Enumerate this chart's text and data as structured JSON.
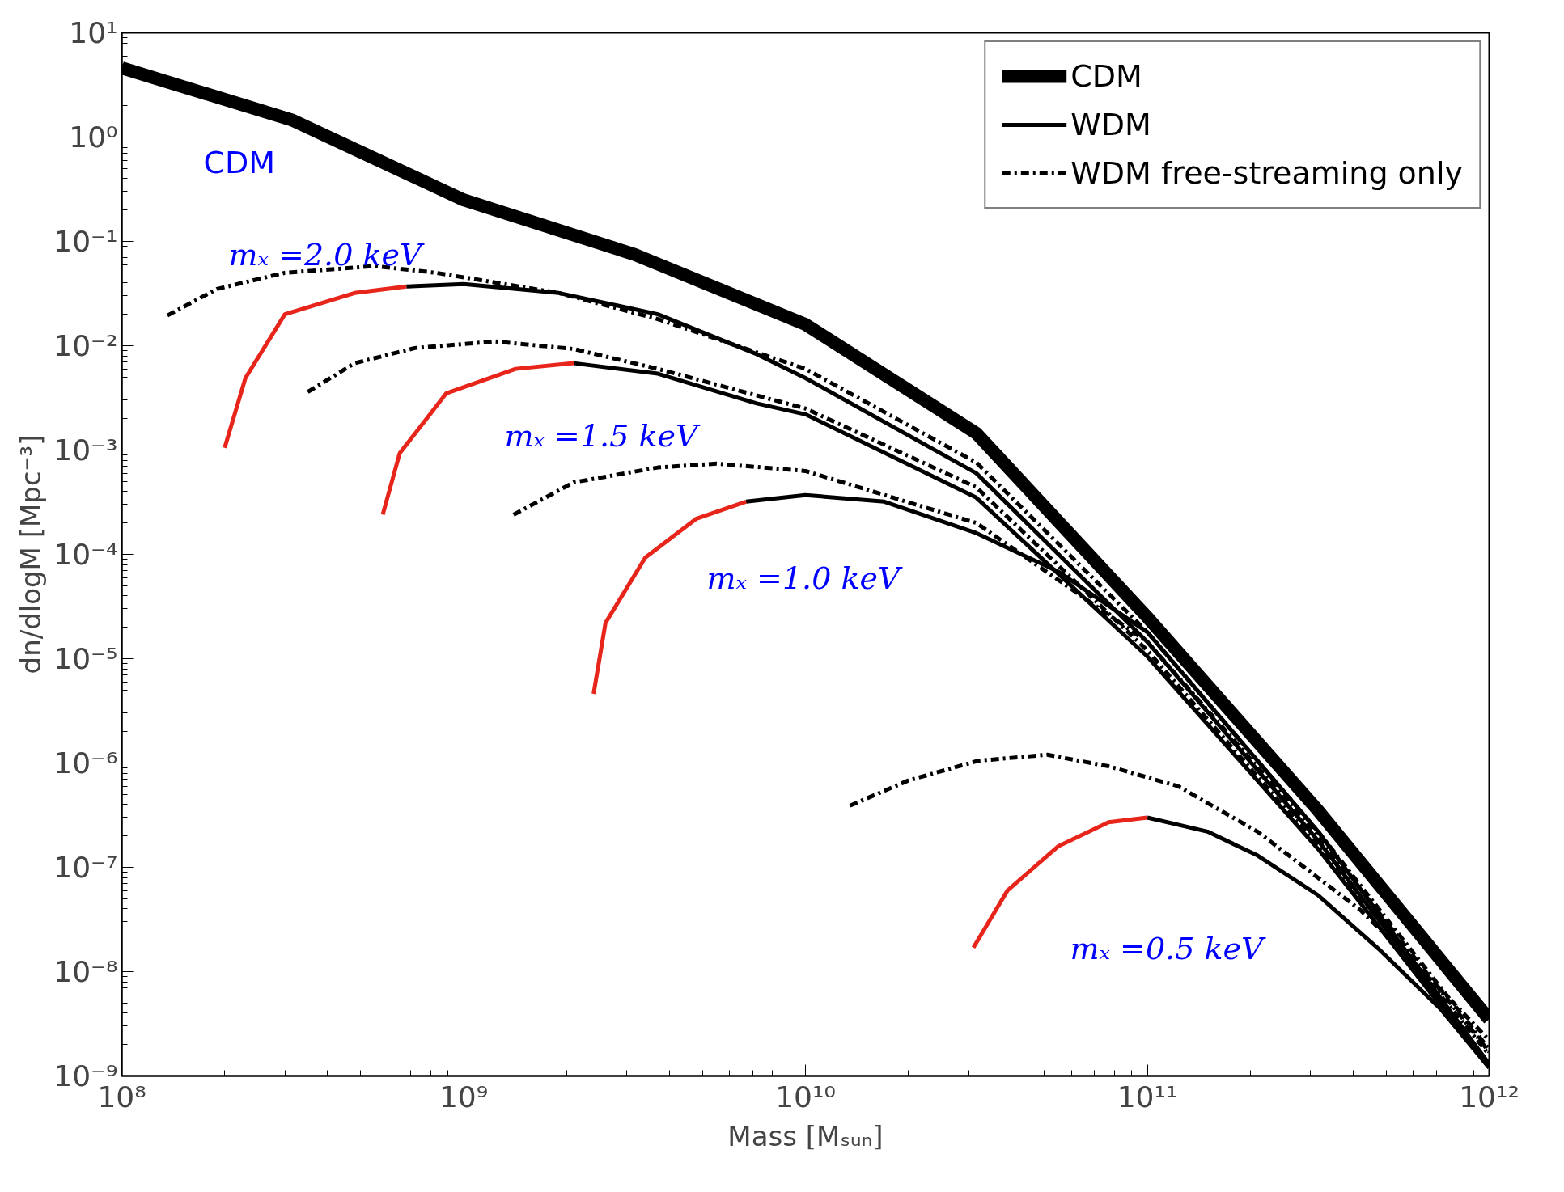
{
  "chart_data": {
    "type": "line",
    "xlabel": "Mass [Mₛᵤₙ]",
    "ylabel": "dn/dlogM [Mpc⁻³]",
    "log": "xy",
    "grid": false,
    "legend": "top right",
    "xlim": [
      100000000.0,
      1000000000000.0
    ],
    "ylim": [
      1e-09,
      10
    ],
    "xticks": [
      {
        "value": 100000000.0,
        "label": "10⁸"
      },
      {
        "value": 1000000000.0,
        "label": "10⁹"
      },
      {
        "value": 10000000000.0,
        "label": "10¹⁰"
      },
      {
        "value": 100000000000.0,
        "label": "10¹¹"
      },
      {
        "value": 1000000000000.0,
        "label": "10¹²"
      }
    ],
    "yticks": [
      {
        "value": 1e-09,
        "label": "10⁻⁹"
      },
      {
        "value": 1e-08,
        "label": "10⁻⁸"
      },
      {
        "value": 1e-07,
        "label": "10⁻⁷"
      },
      {
        "value": 1e-06,
        "label": "10⁻⁶"
      },
      {
        "value": 1e-05,
        "label": "10⁻⁵"
      },
      {
        "value": 0.0001,
        "label": "10⁻⁴"
      },
      {
        "value": 0.001,
        "label": "10⁻³"
      },
      {
        "value": 0.01,
        "label": "10⁻²"
      },
      {
        "value": 0.1,
        "label": "10⁻¹"
      },
      {
        "value": 1,
        "label": "10⁰"
      },
      {
        "value": 10,
        "label": "10¹"
      }
    ],
    "series": [
      {
        "name": "CDM",
        "color": "#000000",
        "line_style": "solid",
        "x": [
          100000000.0,
          316000000.0,
          1000000000.0,
          3160000000.0,
          10000000000.0,
          31600000000.0,
          100000000000.0,
          316000000000.0,
          1000000000000.0
        ],
        "values": [
          4.6,
          1.45,
          0.25,
          0.075,
          0.016,
          0.00145,
          2.5e-05,
          3.5e-07,
          3.5e-09
        ]
      },
      {
        "name": "WDM",
        "color": "#000000",
        "line_style": "solid",
        "x": [
          680000000.0,
          1000000000.0,
          1900000000.0,
          3700000000.0,
          7200000000.0,
          10000000000.0,
          31600000000.0,
          100000000000.0,
          316000000000.0,
          1000000000000.0
        ],
        "values": [
          0.037,
          0.039,
          0.032,
          0.02,
          0.0083,
          0.0049,
          0.0006,
          1.45e-05,
          1.8e-07,
          1.3e-09
        ]
      },
      {
        "color": "#e8251a",
        "line_style": "solid",
        "x": [
          200000000.0,
          230000000.0,
          300000000.0,
          480000000.0,
          680000000.0
        ],
        "values": [
          0.00105,
          0.0049,
          0.02,
          0.032,
          0.037
        ]
      },
      {
        "color": "#000000",
        "line_style": "solid",
        "x": [
          2100000000.0,
          3700000000.0,
          7200000000.0,
          10000000000.0,
          31600000000.0,
          100000000000.0,
          316000000000.0,
          1000000000000.0
        ],
        "values": [
          0.0068,
          0.0054,
          0.0028,
          0.0022,
          0.00035,
          1.05e-05,
          1.5e-07,
          1.2e-09
        ]
      },
      {
        "color": "#e8251a",
        "line_style": "solid",
        "x": [
          580000000.0,
          650000000.0,
          890000000.0,
          1420000000.0,
          2100000000.0
        ],
        "values": [
          0.00024,
          0.00093,
          0.0035,
          0.006,
          0.0068
        ]
      },
      {
        "color": "#000000",
        "line_style": "solid",
        "x": [
          6700000000.0,
          10000000000.0,
          17000000000.0,
          31600000000.0,
          55000000000.0,
          100000000000.0,
          316000000000.0,
          1000000000000.0
        ],
        "values": [
          0.00032,
          0.00037,
          0.00032,
          0.00016,
          6.8e-05,
          1.8e-05,
          2.2e-07,
          1.3e-09
        ]
      },
      {
        "color": "#e8251a",
        "line_style": "solid",
        "x": [
          2400000000.0,
          2600000000.0,
          3400000000.0,
          4800000000.0,
          6700000000.0
        ],
        "values": [
          4.6e-06,
          2.2e-05,
          9.3e-05,
          0.00022,
          0.00032
        ]
      },
      {
        "color": "#000000",
        "line_style": "solid",
        "x": [
          100000000000.0,
          150000000000.0,
          210000000000.0,
          316000000000.0,
          480000000000.0,
          720000000000.0,
          1000000000000.0
        ],
        "values": [
          3e-07,
          2.2e-07,
          1.3e-07,
          5.4e-08,
          1.6e-08,
          4.4e-09,
          1.2e-09
        ]
      },
      {
        "color": "#e8251a",
        "line_style": "solid",
        "x": [
          31000000000.0,
          39000000000.0,
          55000000000.0,
          77000000000.0,
          100000000000.0
        ],
        "values": [
          1.7e-08,
          6e-08,
          1.6e-07,
          2.7e-07,
          3e-07
        ]
      },
      {
        "name": "WDM free-streaming only",
        "color": "#000000",
        "line_style": "dashed",
        "x": [
          136000000.0,
          190000000.0,
          300000000.0,
          550000000.0,
          830000000.0,
          1900000000.0,
          3700000000.0,
          10000000000.0,
          31600000000.0,
          100000000000.0,
          316000000000.0,
          1000000000000.0
        ],
        "values": [
          0.0195,
          0.035,
          0.05,
          0.058,
          0.05,
          0.032,
          0.018,
          0.006,
          0.00076,
          1.8e-05,
          2.2e-07,
          1.8e-09
        ]
      },
      {
        "color": "#000000",
        "line_style": "dashed",
        "x": [
          350000000.0,
          480000000.0,
          720000000.0,
          1240000000.0,
          2100000000.0,
          3700000000.0,
          10000000000.0,
          31600000000.0,
          100000000000.0,
          316000000000.0,
          1000000000000.0
        ],
        "values": [
          0.0036,
          0.0068,
          0.0095,
          0.011,
          0.0093,
          0.006,
          0.0025,
          0.00044,
          1.2e-05,
          1.6e-07,
          1.6e-09
        ]
      },
      {
        "color": "#000000",
        "line_style": "dashed",
        "x": [
          1400000000.0,
          2100000000.0,
          3700000000.0,
          5500000000.0,
          10000000000.0,
          31600000000.0,
          100000000000.0,
          316000000000.0,
          1000000000000.0
        ],
        "values": [
          0.00024,
          0.00049,
          0.00068,
          0.00074,
          0.00063,
          0.0002,
          1.45e-05,
          2e-07,
          1.7e-09
        ]
      },
      {
        "color": "#000000",
        "line_style": "dashed",
        "x": [
          13500000000.0,
          20000000000.0,
          32000000000.0,
          51000000000.0,
          77000000000.0,
          123000000000.0,
          210000000000.0,
          420000000000.0,
          720000000000.0,
          1000000000000.0
        ],
        "values": [
          3.9e-07,
          6.8e-07,
          1.05e-06,
          1.2e-06,
          9.3e-07,
          6e-07,
          2.2e-07,
          3.9e-08,
          6.8e-09,
          2.2e-09
        ]
      }
    ],
    "annotations": [
      "CDM",
      "mₓ =2.0 keV",
      "mₓ =1.5 keV",
      "mₓ =1.0 keV",
      "mₓ =0.5 keV"
    ]
  }
}
